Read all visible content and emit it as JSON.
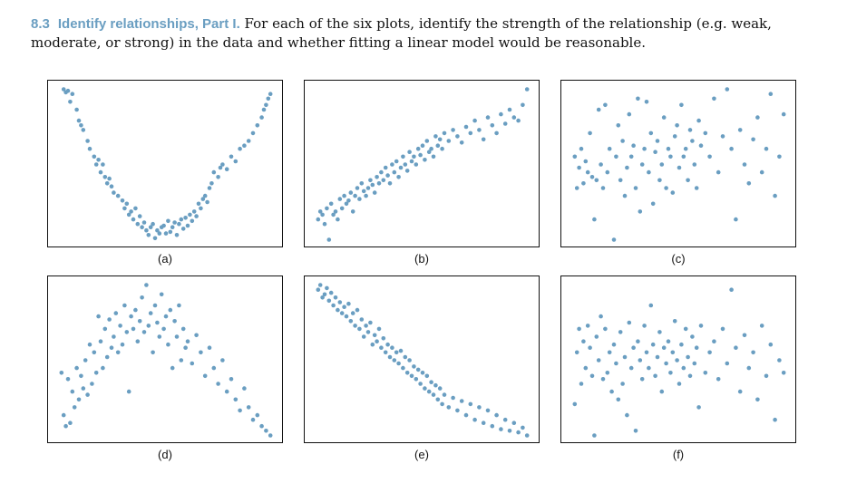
{
  "exercise": {
    "number": "8.3",
    "title": "Identify relationships, Part I.",
    "text": "For each of the six plots, identify the strength of the relationship (e.g. weak, moderate, or strong) in the data and whether fitting a linear model would be reasonable."
  },
  "point_color": "#6a9ec1",
  "chart_data": [
    {
      "type": "scatter",
      "caption": "(a)",
      "x": [
        0.03,
        0.04,
        0.05,
        0.06,
        0.07,
        0.09,
        0.1,
        0.11,
        0.12,
        0.14,
        0.15,
        0.17,
        0.18,
        0.19,
        0.2,
        0.21,
        0.22,
        0.23,
        0.24,
        0.25,
        0.26,
        0.28,
        0.3,
        0.31,
        0.32,
        0.33,
        0.34,
        0.35,
        0.36,
        0.37,
        0.38,
        0.39,
        0.4,
        0.41,
        0.42,
        0.43,
        0.44,
        0.45,
        0.46,
        0.47,
        0.48,
        0.49,
        0.5,
        0.51,
        0.52,
        0.53,
        0.54,
        0.55,
        0.56,
        0.57,
        0.58,
        0.59,
        0.6,
        0.61,
        0.62,
        0.63,
        0.64,
        0.65,
        0.66,
        0.67,
        0.68,
        0.69,
        0.7,
        0.71,
        0.72,
        0.74,
        0.75,
        0.76,
        0.78,
        0.8,
        0.82,
        0.84,
        0.86,
        0.88,
        0.9,
        0.92,
        0.94,
        0.95,
        0.96,
        0.97,
        0.98
      ],
      "y": [
        0.98,
        0.96,
        0.97,
        0.9,
        0.95,
        0.85,
        0.78,
        0.75,
        0.72,
        0.65,
        0.6,
        0.55,
        0.5,
        0.53,
        0.45,
        0.5,
        0.42,
        0.38,
        0.41,
        0.36,
        0.32,
        0.3,
        0.27,
        0.22,
        0.25,
        0.18,
        0.2,
        0.15,
        0.22,
        0.12,
        0.17,
        0.1,
        0.13,
        0.08,
        0.05,
        0.1,
        0.12,
        0.03,
        0.08,
        0.06,
        0.1,
        0.11,
        0.06,
        0.14,
        0.07,
        0.1,
        0.13,
        0.05,
        0.12,
        0.15,
        0.09,
        0.16,
        0.11,
        0.18,
        0.14,
        0.2,
        0.17,
        0.25,
        0.22,
        0.28,
        0.3,
        0.26,
        0.35,
        0.38,
        0.45,
        0.42,
        0.48,
        0.5,
        0.47,
        0.55,
        0.52,
        0.6,
        0.62,
        0.65,
        0.7,
        0.75,
        0.8,
        0.85,
        0.88,
        0.92,
        0.95
      ]
    },
    {
      "type": "scatter",
      "caption": "(b)",
      "x": [
        0.02,
        0.03,
        0.04,
        0.05,
        0.06,
        0.07,
        0.08,
        0.09,
        0.1,
        0.11,
        0.12,
        0.13,
        0.14,
        0.15,
        0.16,
        0.17,
        0.18,
        0.19,
        0.2,
        0.21,
        0.22,
        0.23,
        0.24,
        0.25,
        0.26,
        0.27,
        0.28,
        0.29,
        0.3,
        0.31,
        0.32,
        0.33,
        0.34,
        0.35,
        0.36,
        0.37,
        0.38,
        0.39,
        0.4,
        0.41,
        0.42,
        0.43,
        0.44,
        0.45,
        0.46,
        0.47,
        0.48,
        0.49,
        0.5,
        0.51,
        0.52,
        0.53,
        0.54,
        0.55,
        0.56,
        0.57,
        0.58,
        0.59,
        0.6,
        0.62,
        0.64,
        0.66,
        0.68,
        0.7,
        0.72,
        0.74,
        0.76,
        0.78,
        0.8,
        0.82,
        0.84,
        0.86,
        0.88,
        0.9,
        0.92,
        0.94,
        0.96,
        0.98
      ],
      "y": [
        0.15,
        0.2,
        0.18,
        0.12,
        0.22,
        0.02,
        0.25,
        0.18,
        0.2,
        0.15,
        0.28,
        0.22,
        0.3,
        0.25,
        0.27,
        0.32,
        0.2,
        0.3,
        0.35,
        0.28,
        0.38,
        0.33,
        0.3,
        0.35,
        0.4,
        0.37,
        0.32,
        0.42,
        0.38,
        0.45,
        0.4,
        0.48,
        0.43,
        0.38,
        0.5,
        0.45,
        0.52,
        0.42,
        0.48,
        0.55,
        0.5,
        0.46,
        0.58,
        0.52,
        0.55,
        0.5,
        0.6,
        0.56,
        0.62,
        0.53,
        0.65,
        0.58,
        0.6,
        0.55,
        0.68,
        0.62,
        0.66,
        0.6,
        0.7,
        0.65,
        0.72,
        0.68,
        0.64,
        0.74,
        0.7,
        0.78,
        0.72,
        0.66,
        0.8,
        0.75,
        0.7,
        0.82,
        0.76,
        0.85,
        0.8,
        0.78,
        0.88,
        0.98
      ]
    },
    {
      "type": "scatter",
      "caption": "(c)",
      "x": [
        0.02,
        0.03,
        0.04,
        0.05,
        0.06,
        0.07,
        0.08,
        0.09,
        0.1,
        0.11,
        0.12,
        0.13,
        0.14,
        0.15,
        0.16,
        0.17,
        0.18,
        0.2,
        0.21,
        0.22,
        0.23,
        0.24,
        0.25,
        0.26,
        0.27,
        0.28,
        0.29,
        0.3,
        0.31,
        0.32,
        0.33,
        0.34,
        0.35,
        0.36,
        0.37,
        0.38,
        0.39,
        0.4,
        0.41,
        0.42,
        0.43,
        0.44,
        0.45,
        0.46,
        0.47,
        0.48,
        0.49,
        0.5,
        0.51,
        0.52,
        0.53,
        0.54,
        0.55,
        0.56,
        0.57,
        0.58,
        0.59,
        0.6,
        0.62,
        0.64,
        0.66,
        0.68,
        0.7,
        0.72,
        0.74,
        0.76,
        0.78,
        0.8,
        0.82,
        0.84,
        0.86,
        0.88,
        0.9,
        0.92,
        0.94,
        0.96,
        0.98
      ],
      "y": [
        0.55,
        0.35,
        0.48,
        0.6,
        0.38,
        0.52,
        0.45,
        0.7,
        0.42,
        0.15,
        0.4,
        0.85,
        0.5,
        0.35,
        0.88,
        0.45,
        0.6,
        0.02,
        0.55,
        0.75,
        0.4,
        0.65,
        0.3,
        0.48,
        0.82,
        0.55,
        0.62,
        0.35,
        0.92,
        0.2,
        0.5,
        0.6,
        0.9,
        0.45,
        0.7,
        0.25,
        0.58,
        0.65,
        0.4,
        0.5,
        0.8,
        0.35,
        0.6,
        0.55,
        0.32,
        0.68,
        0.75,
        0.48,
        0.88,
        0.55,
        0.6,
        0.4,
        0.72,
        0.65,
        0.5,
        0.35,
        0.78,
        0.62,
        0.7,
        0.55,
        0.92,
        0.45,
        0.68,
        0.98,
        0.6,
        0.15,
        0.72,
        0.5,
        0.38,
        0.66,
        0.8,
        0.45,
        0.6,
        0.95,
        0.3,
        0.55,
        0.82
      ]
    },
    {
      "type": "scatter",
      "caption": "(d)",
      "x": [
        0.02,
        0.03,
        0.04,
        0.05,
        0.06,
        0.07,
        0.08,
        0.09,
        0.1,
        0.11,
        0.12,
        0.13,
        0.14,
        0.15,
        0.16,
        0.17,
        0.18,
        0.19,
        0.2,
        0.21,
        0.22,
        0.23,
        0.24,
        0.25,
        0.26,
        0.27,
        0.28,
        0.29,
        0.3,
        0.31,
        0.32,
        0.33,
        0.34,
        0.35,
        0.36,
        0.37,
        0.38,
        0.39,
        0.4,
        0.41,
        0.42,
        0.43,
        0.44,
        0.45,
        0.46,
        0.47,
        0.48,
        0.49,
        0.5,
        0.51,
        0.52,
        0.53,
        0.54,
        0.55,
        0.56,
        0.57,
        0.58,
        0.59,
        0.6,
        0.62,
        0.64,
        0.66,
        0.68,
        0.7,
        0.72,
        0.74,
        0.76,
        0.78,
        0.8,
        0.82,
        0.84,
        0.86,
        0.88,
        0.9,
        0.92,
        0.94,
        0.96,
        0.98
      ],
      "y": [
        0.42,
        0.15,
        0.08,
        0.38,
        0.1,
        0.3,
        0.2,
        0.45,
        0.25,
        0.4,
        0.32,
        0.5,
        0.28,
        0.6,
        0.35,
        0.55,
        0.42,
        0.78,
        0.62,
        0.45,
        0.7,
        0.52,
        0.76,
        0.58,
        0.65,
        0.8,
        0.55,
        0.72,
        0.6,
        0.85,
        0.68,
        0.3,
        0.78,
        0.7,
        0.82,
        0.62,
        0.75,
        0.9,
        0.68,
        0.98,
        0.72,
        0.8,
        0.55,
        0.85,
        0.74,
        0.65,
        0.92,
        0.7,
        0.78,
        0.6,
        0.82,
        0.45,
        0.75,
        0.65,
        0.85,
        0.5,
        0.7,
        0.58,
        0.62,
        0.48,
        0.66,
        0.55,
        0.4,
        0.58,
        0.45,
        0.35,
        0.5,
        0.3,
        0.38,
        0.25,
        0.18,
        0.32,
        0.2,
        0.12,
        0.15,
        0.08,
        0.05,
        0.02
      ]
    },
    {
      "type": "scatter",
      "caption": "(e)",
      "x": [
        0.02,
        0.03,
        0.04,
        0.05,
        0.06,
        0.07,
        0.08,
        0.09,
        0.1,
        0.11,
        0.12,
        0.13,
        0.14,
        0.15,
        0.16,
        0.17,
        0.18,
        0.19,
        0.2,
        0.21,
        0.22,
        0.23,
        0.24,
        0.25,
        0.26,
        0.27,
        0.28,
        0.29,
        0.3,
        0.31,
        0.32,
        0.33,
        0.34,
        0.35,
        0.36,
        0.37,
        0.38,
        0.39,
        0.4,
        0.41,
        0.42,
        0.43,
        0.44,
        0.45,
        0.46,
        0.47,
        0.48,
        0.49,
        0.5,
        0.51,
        0.52,
        0.53,
        0.54,
        0.55,
        0.56,
        0.57,
        0.58,
        0.59,
        0.6,
        0.62,
        0.64,
        0.66,
        0.68,
        0.7,
        0.72,
        0.74,
        0.76,
        0.78,
        0.8,
        0.82,
        0.84,
        0.86,
        0.88,
        0.9,
        0.92,
        0.94,
        0.96,
        0.98
      ],
      "y": [
        0.95,
        0.98,
        0.9,
        0.92,
        0.96,
        0.88,
        0.93,
        0.85,
        0.9,
        0.82,
        0.87,
        0.8,
        0.84,
        0.78,
        0.86,
        0.75,
        0.8,
        0.72,
        0.82,
        0.7,
        0.76,
        0.65,
        0.72,
        0.68,
        0.74,
        0.6,
        0.66,
        0.62,
        0.7,
        0.58,
        0.64,
        0.55,
        0.6,
        0.52,
        0.58,
        0.5,
        0.55,
        0.48,
        0.56,
        0.45,
        0.52,
        0.42,
        0.5,
        0.4,
        0.46,
        0.38,
        0.44,
        0.35,
        0.42,
        0.32,
        0.4,
        0.3,
        0.36,
        0.28,
        0.34,
        0.25,
        0.32,
        0.22,
        0.28,
        0.2,
        0.26,
        0.18,
        0.24,
        0.15,
        0.22,
        0.12,
        0.2,
        0.1,
        0.18,
        0.08,
        0.15,
        0.06,
        0.12,
        0.05,
        0.1,
        0.04,
        0.07,
        0.02
      ]
    },
    {
      "type": "scatter",
      "caption": "(f)",
      "x": [
        0.02,
        0.03,
        0.04,
        0.05,
        0.06,
        0.07,
        0.08,
        0.09,
        0.1,
        0.11,
        0.12,
        0.13,
        0.14,
        0.15,
        0.16,
        0.17,
        0.18,
        0.19,
        0.2,
        0.21,
        0.22,
        0.23,
        0.24,
        0.25,
        0.26,
        0.27,
        0.28,
        0.29,
        0.3,
        0.31,
        0.32,
        0.33,
        0.34,
        0.35,
        0.36,
        0.37,
        0.38,
        0.39,
        0.4,
        0.41,
        0.42,
        0.43,
        0.44,
        0.45,
        0.46,
        0.47,
        0.48,
        0.49,
        0.5,
        0.51,
        0.52,
        0.53,
        0.54,
        0.55,
        0.56,
        0.57,
        0.58,
        0.59,
        0.6,
        0.62,
        0.64,
        0.66,
        0.68,
        0.7,
        0.72,
        0.74,
        0.76,
        0.78,
        0.8,
        0.82,
        0.84,
        0.86,
        0.88,
        0.9,
        0.92,
        0.94,
        0.96,
        0.98
      ],
      "y": [
        0.22,
        0.55,
        0.7,
        0.35,
        0.62,
        0.45,
        0.72,
        0.58,
        0.4,
        0.02,
        0.65,
        0.5,
        0.78,
        0.38,
        0.7,
        0.42,
        0.55,
        0.3,
        0.6,
        0.48,
        0.25,
        0.68,
        0.35,
        0.52,
        0.15,
        0.74,
        0.45,
        0.58,
        0.05,
        0.62,
        0.5,
        0.38,
        0.72,
        0.55,
        0.45,
        0.85,
        0.6,
        0.4,
        0.52,
        0.68,
        0.3,
        0.58,
        0.48,
        0.62,
        0.42,
        0.55,
        0.75,
        0.5,
        0.35,
        0.6,
        0.45,
        0.7,
        0.52,
        0.4,
        0.65,
        0.48,
        0.58,
        0.2,
        0.72,
        0.42,
        0.55,
        0.62,
        0.38,
        0.7,
        0.48,
        0.95,
        0.58,
        0.3,
        0.66,
        0.45,
        0.55,
        0.25,
        0.72,
        0.4,
        0.6,
        0.12,
        0.5,
        0.42
      ]
    }
  ]
}
